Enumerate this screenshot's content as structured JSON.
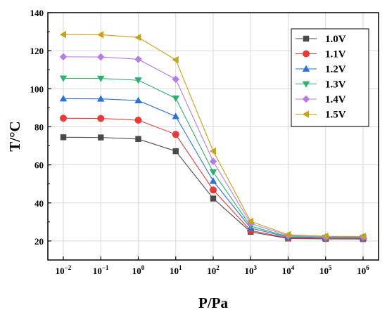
{
  "chart_data": {
    "type": "line",
    "xlabel": "P/Pa",
    "ylabel": "T/°C",
    "x_scale": "log",
    "x": [
      0.01,
      0.1,
      1,
      10,
      100,
      1000,
      10000,
      100000,
      1000000
    ],
    "x_ticks": [
      {
        "base": "10",
        "exp": "−2"
      },
      {
        "base": "10",
        "exp": "−1"
      },
      {
        "base": "10",
        "exp": "0"
      },
      {
        "base": "10",
        "exp": "1"
      },
      {
        "base": "10",
        "exp": "2"
      },
      {
        "base": "10",
        "exp": "3"
      },
      {
        "base": "10",
        "exp": "4"
      },
      {
        "base": "10",
        "exp": "5"
      },
      {
        "base": "10",
        "exp": "6"
      }
    ],
    "xlim": [
      0.01,
      1000000
    ],
    "ylim": [
      10,
      140
    ],
    "y_ticks": [
      "20",
      "40",
      "60",
      "80",
      "100",
      "120",
      "140"
    ],
    "grid": true,
    "legend_position": "top-right",
    "series": [
      {
        "name": "1.0V",
        "color": "#4a4a4a",
        "marker": "square",
        "values": [
          74.5,
          74.4,
          73.6,
          67.2,
          42.3,
          24.8,
          21.3,
          21.1,
          21.0
        ]
      },
      {
        "name": "1.1V",
        "color": "#e83a3a",
        "marker": "circle",
        "values": [
          84.5,
          84.4,
          83.5,
          76.0,
          46.8,
          25.5,
          21.6,
          21.3,
          21.2
        ]
      },
      {
        "name": "1.2V",
        "color": "#2a72d6",
        "marker": "triangle-up",
        "values": [
          94.8,
          94.7,
          93.8,
          85.5,
          51.5,
          26.8,
          22.0,
          21.6,
          21.5
        ]
      },
      {
        "name": "1.3V",
        "color": "#2db06e",
        "marker": "triangle-down",
        "values": [
          105.5,
          105.4,
          104.5,
          95.0,
          56.2,
          27.8,
          22.3,
          21.8,
          21.8
        ]
      },
      {
        "name": "1.4V",
        "color": "#b77be6",
        "marker": "diamond",
        "values": [
          116.8,
          116.7,
          115.5,
          105.0,
          61.8,
          29.2,
          22.8,
          22.1,
          22.1
        ]
      },
      {
        "name": "1.5V",
        "color": "#c8a21a",
        "marker": "triangle-left",
        "values": [
          128.5,
          128.4,
          127.0,
          115.2,
          67.2,
          30.3,
          23.3,
          22.5,
          22.4
        ]
      }
    ]
  }
}
